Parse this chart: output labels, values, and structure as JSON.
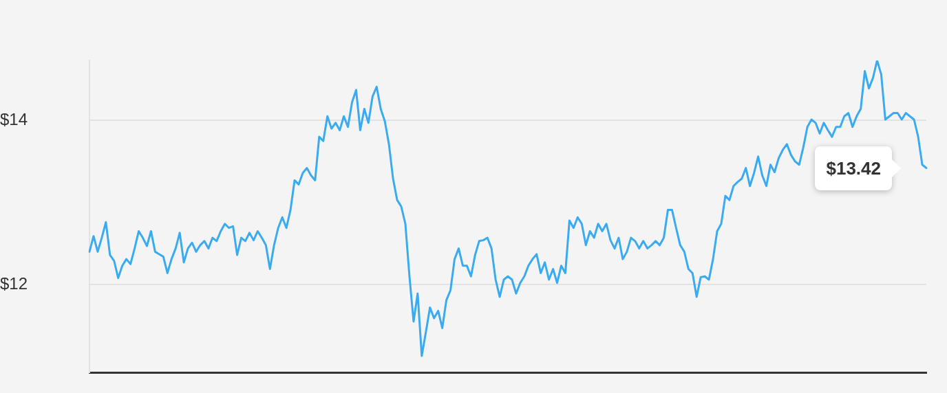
{
  "chart_data": {
    "type": "line",
    "categories": [
      null,
      null,
      null,
      null,
      null,
      null,
      null,
      null,
      null,
      null,
      null,
      null,
      null,
      null,
      null,
      null,
      null,
      null,
      null,
      null,
      null,
      null,
      null,
      null,
      null,
      null,
      null,
      null,
      null,
      null,
      null,
      null,
      null,
      null,
      null,
      null,
      null,
      null,
      null,
      null,
      null,
      null,
      null,
      null,
      null,
      null,
      null,
      null,
      null,
      null,
      null,
      null,
      null,
      null,
      null,
      null,
      null,
      null,
      null,
      null,
      null,
      null,
      null,
      null,
      null,
      null,
      null,
      null,
      null,
      null,
      null,
      null,
      null,
      null,
      null,
      null,
      null,
      null,
      null,
      null,
      null,
      null,
      null,
      null,
      null,
      null,
      null,
      null,
      null,
      null,
      null,
      null,
      null,
      null,
      null,
      null,
      null,
      null,
      null,
      null,
      null,
      null,
      null,
      null,
      null,
      null,
      null,
      null,
      null,
      null,
      null,
      null,
      null,
      null,
      null,
      null,
      null,
      null,
      null,
      null,
      null,
      null,
      null,
      null,
      null,
      null,
      null,
      null,
      null,
      null,
      null,
      null,
      null,
      null,
      null,
      null,
      null,
      null,
      null,
      null,
      null,
      null,
      null,
      null,
      null,
      null,
      null,
      null,
      null,
      null,
      null,
      null,
      null,
      null,
      null,
      null,
      null,
      null,
      null,
      null,
      null,
      null,
      null,
      null,
      null,
      null,
      null,
      null,
      null,
      null,
      null,
      null,
      null,
      null,
      null,
      null,
      null,
      null,
      null,
      null,
      null,
      null,
      null,
      null,
      null,
      null,
      null,
      null,
      null,
      null,
      null,
      null,
      null,
      null,
      null,
      null,
      null,
      null,
      null,
      null,
      null,
      null,
      null,
      null,
      null
    ],
    "series": [
      {
        "color": "#3aabf0",
        "values": [
          12.4,
          12.59,
          12.4,
          12.57,
          12.76,
          12.36,
          12.29,
          12.08,
          12.23,
          12.31,
          12.25,
          12.44,
          12.65,
          12.57,
          12.47,
          12.65,
          12.4,
          12.37,
          12.34,
          12.14,
          12.31,
          12.44,
          12.63,
          12.27,
          12.44,
          12.51,
          12.4,
          12.48,
          12.53,
          12.44,
          12.57,
          12.53,
          12.65,
          12.74,
          12.69,
          12.71,
          12.36,
          12.57,
          12.53,
          12.63,
          12.54,
          12.65,
          12.57,
          12.48,
          12.19,
          12.48,
          12.69,
          12.82,
          12.69,
          12.91,
          13.27,
          13.22,
          13.36,
          13.42,
          13.33,
          13.27,
          13.8,
          13.75,
          14.05,
          13.9,
          13.97,
          13.88,
          14.05,
          13.92,
          14.22,
          14.37,
          13.88,
          14.14,
          13.97,
          14.29,
          14.41,
          14.14,
          13.99,
          13.71,
          13.29,
          13.03,
          12.95,
          12.74,
          12.1,
          11.55,
          11.89,
          11.13,
          11.42,
          11.72,
          11.59,
          11.68,
          11.47,
          11.81,
          11.93,
          12.31,
          12.44,
          12.23,
          12.23,
          12.1,
          12.36,
          12.53,
          12.54,
          12.57,
          12.44,
          12.06,
          11.85,
          12.06,
          12.1,
          12.06,
          11.89,
          12.02,
          12.1,
          12.23,
          12.31,
          12.37,
          12.14,
          12.27,
          12.06,
          12.19,
          12.02,
          12.23,
          12.14,
          12.78,
          12.69,
          12.82,
          12.74,
          12.48,
          12.65,
          12.57,
          12.74,
          12.65,
          12.74,
          12.54,
          12.44,
          12.57,
          12.31,
          12.4,
          12.57,
          12.53,
          12.44,
          12.53,
          12.44,
          12.48,
          12.53,
          12.48,
          12.57,
          12.91,
          12.91,
          12.69,
          12.48,
          12.4,
          12.19,
          12.14,
          11.85,
          12.09,
          12.1,
          12.06,
          12.31,
          12.65,
          12.74,
          13.08,
          13.03,
          13.2,
          13.25,
          13.29,
          13.42,
          13.2,
          13.36,
          13.56,
          13.33,
          13.2,
          13.46,
          13.37,
          13.54,
          13.64,
          13.71,
          13.58,
          13.5,
          13.46,
          13.67,
          13.92,
          14.01,
          13.97,
          13.84,
          13.97,
          13.88,
          13.8,
          13.92,
          13.92,
          14.05,
          14.09,
          13.92,
          14.05,
          14.14,
          14.6,
          14.39,
          14.52,
          14.73,
          14.56,
          14.01,
          14.05,
          14.09,
          14.09,
          14.01,
          14.09,
          14.05,
          14.01,
          13.8,
          13.46,
          13.42
        ]
      }
    ],
    "ylim": [
      10.93,
      14.73
    ],
    "yticks": [
      {
        "value": 12,
        "label": "$12"
      },
      {
        "value": 14,
        "label": "$14"
      }
    ],
    "grid": "y",
    "tick_labels": "y",
    "marker": "none",
    "line_style": "solid",
    "annotations": [
      "$13.42"
    ]
  }
}
